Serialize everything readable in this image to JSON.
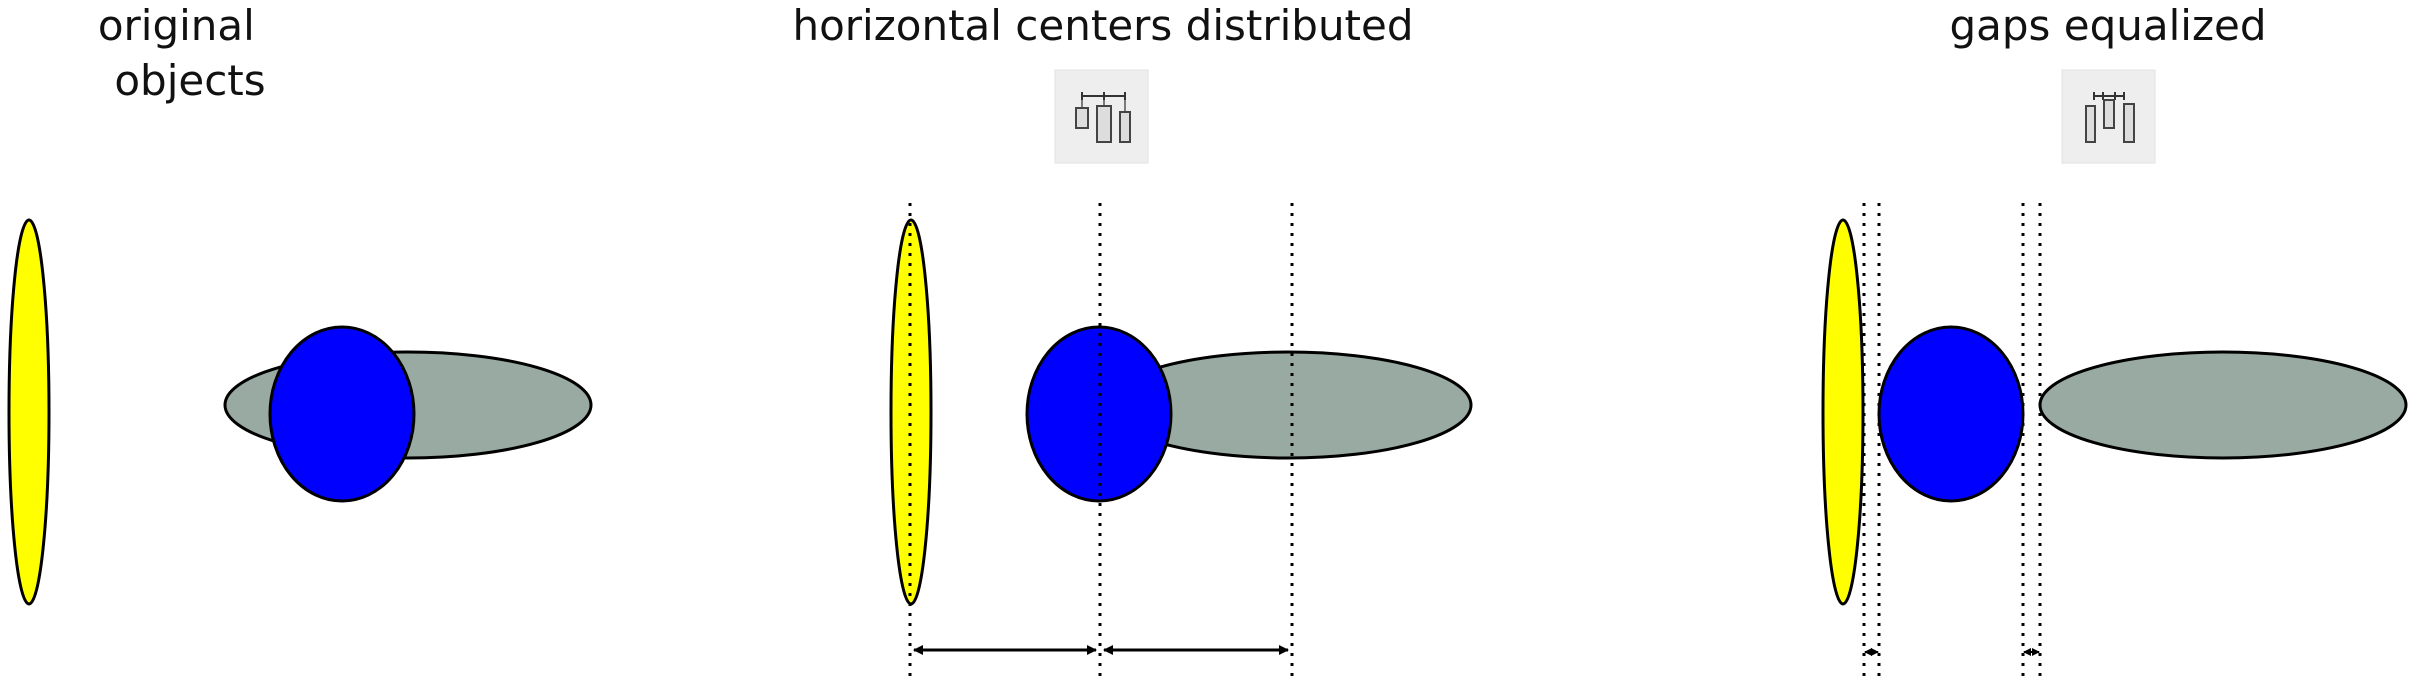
{
  "panels": [
    {
      "title_lines": [
        "original",
        "objects"
      ]
    },
    {
      "title_lines": [
        "horizontal centers distributed"
      ]
    },
    {
      "title_lines": [
        "gaps equalized"
      ]
    }
  ],
  "icons": {
    "distribute_centers": "distribute-horizontal-centers-icon",
    "equalize_gaps": "equalize-horizontal-gaps-icon"
  },
  "colors": {
    "yellow_shape": "#ffff00",
    "blue_shape": "#0000ff",
    "gray_shape": "#99aaa3",
    "outline": "#000000"
  }
}
